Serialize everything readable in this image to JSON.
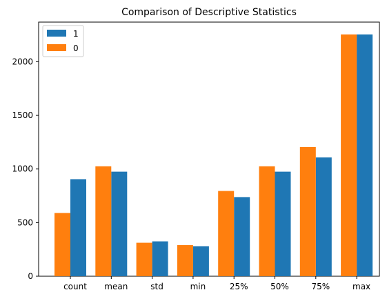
{
  "chart_data": {
    "type": "bar",
    "title": "Comparison of Descriptive Statistics",
    "categories": [
      "count",
      "mean",
      "std",
      "min",
      "25%",
      "50%",
      "75%",
      "max"
    ],
    "series": [
      {
        "name": "1",
        "color": "#1f77b4",
        "values": [
          905,
          975,
          325,
          280,
          738,
          975,
          1108,
          2255
        ]
      },
      {
        "name": "0",
        "color": "#ff7f0e",
        "values": [
          590,
          1025,
          312,
          290,
          795,
          1025,
          1205,
          2255
        ]
      }
    ],
    "yticks": [
      0,
      500,
      1000,
      1500,
      2000
    ],
    "ylim": [
      0,
      2370
    ],
    "xlabel": "",
    "ylabel": "",
    "legend": "top-left",
    "grid": false
  }
}
